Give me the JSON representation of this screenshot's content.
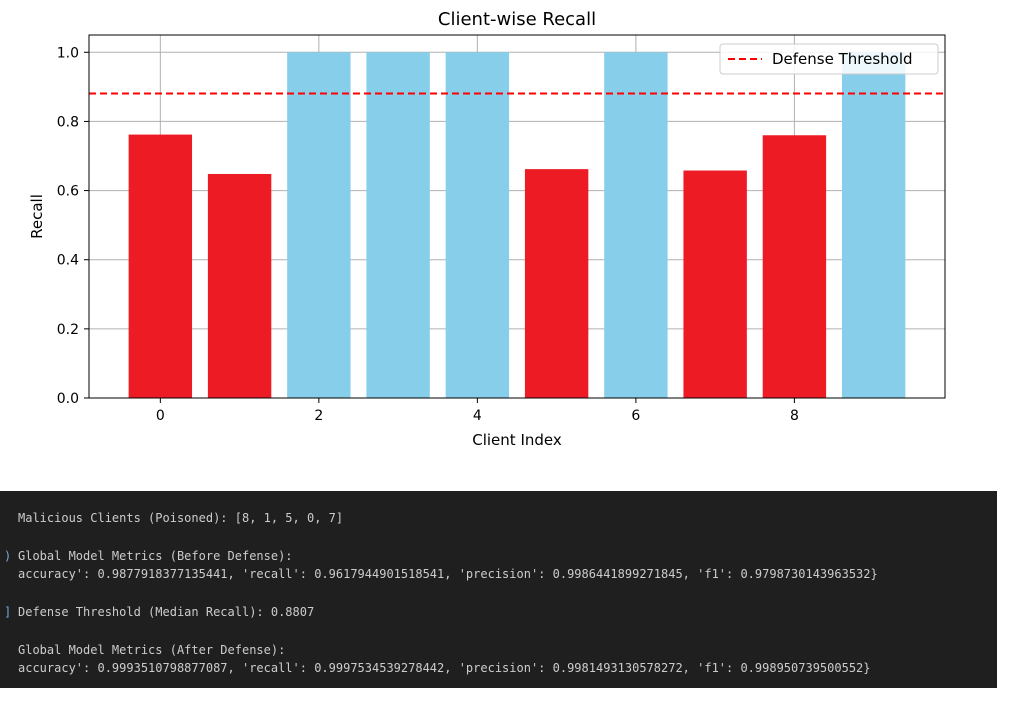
{
  "chart_data": {
    "type": "bar",
    "title": "Client-wise Recall",
    "xlabel": "Client Index",
    "ylabel": "Recall",
    "categories": [
      0,
      1,
      2,
      3,
      4,
      5,
      6,
      7,
      8,
      9
    ],
    "values": [
      0.762,
      0.648,
      1.0,
      1.0,
      1.0,
      0.662,
      1.0,
      0.658,
      0.76,
      1.0
    ],
    "bar_colors": [
      "#ED1C24",
      "#ED1C24",
      "#87CEEB",
      "#87CEEB",
      "#87CEEB",
      "#ED1C24",
      "#87CEEB",
      "#ED1C24",
      "#ED1C24",
      "#87CEEB"
    ],
    "xticks": [
      0,
      2,
      4,
      6,
      8
    ],
    "yticks": [
      0.0,
      0.2,
      0.4,
      0.6,
      0.8,
      1.0
    ],
    "xlim": [
      -0.9,
      9.9
    ],
    "ylim": [
      0.0,
      1.05
    ],
    "grid": true,
    "threshold": {
      "label": "Defense Threshold",
      "value": 0.8807,
      "color": "#ff0000",
      "style": "dashed"
    },
    "legend": {
      "placement": "top-right",
      "entries": [
        "Defense Threshold"
      ]
    }
  },
  "console": {
    "background": "#1f1f1f",
    "text_color": "#cccccc",
    "lines": [
      "Malicious Clients (Poisoned): [8, 1, 5, 0, 7]",
      "Global Model Metrics (Before Defense):",
      "accuracy': 0.9877918377135441, 'recall': 0.9617944901518541, 'precision': 0.9986441899271845, 'f1': 0.979873014396353 2}",
      "Defense Threshold (Median Recall): 0.8807",
      "Global Model Metrics (After Defense):",
      "accuracy': 0.9993510798877087, 'recall': 0.9997534539278442, 'precision': 0.9981493130578272, 'f1': 0.998950739500552}"
    ]
  }
}
